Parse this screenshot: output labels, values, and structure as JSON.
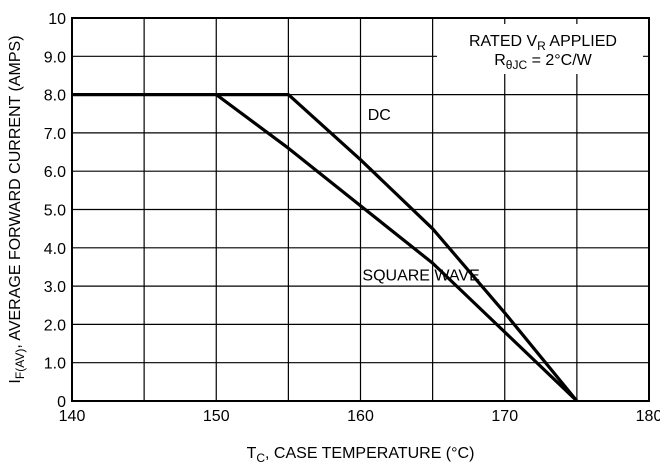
{
  "chart_data": {
    "type": "line",
    "xlabel": {
      "prefix": "T",
      "sub": "C",
      "rest": ", CASE TEMPERATURE (°C)"
    },
    "ylabel": {
      "prefix": "I",
      "sub": "F(AV)",
      "rest": ", AVERAGE FORWARD CURRENT (AMPS)"
    },
    "xlim": [
      140,
      180
    ],
    "ylim": [
      0,
      10
    ],
    "x_ticks": [
      140,
      150,
      160,
      170,
      180
    ],
    "y_ticks": [
      {
        "value": 0,
        "label": "0"
      },
      {
        "value": 1,
        "label": "1.0"
      },
      {
        "value": 2,
        "label": "2.0"
      },
      {
        "value": 3,
        "label": "3.0"
      },
      {
        "value": 4,
        "label": "4.0"
      },
      {
        "value": 5,
        "label": "5.0"
      },
      {
        "value": 6,
        "label": "6.0"
      },
      {
        "value": 7,
        "label": "7.0"
      },
      {
        "value": 8,
        "label": "8.0"
      },
      {
        "value": 9,
        "label": "9.0"
      },
      {
        "value": 10,
        "label": "10"
      }
    ],
    "grid": true,
    "series": [
      {
        "name": "DC",
        "points": [
          [
            140,
            8.0
          ],
          [
            155,
            8.0
          ],
          [
            160,
            6.3
          ],
          [
            165,
            4.5
          ],
          [
            170,
            2.3
          ],
          [
            175,
            0
          ]
        ]
      },
      {
        "name": "SQUARE WAVE",
        "points": [
          [
            150,
            8.0
          ],
          [
            155,
            6.6
          ],
          [
            160,
            5.1
          ],
          [
            165,
            3.6
          ],
          [
            170,
            1.8
          ],
          [
            175,
            0
          ]
        ]
      }
    ],
    "annotations": [
      {
        "id": "dc",
        "text": "DC",
        "x": 161.3,
        "y": 7.5
      },
      {
        "id": "sq",
        "text": "SQUARE WAVE",
        "x": 164.2,
        "y": 3.3
      }
    ],
    "note": {
      "line1": {
        "prefix": "RATED V",
        "sub": "R",
        "rest": " APPLIED"
      },
      "line2": {
        "prefix": "R",
        "sub": "θJC",
        "rest": " = 2°C/W"
      }
    }
  }
}
